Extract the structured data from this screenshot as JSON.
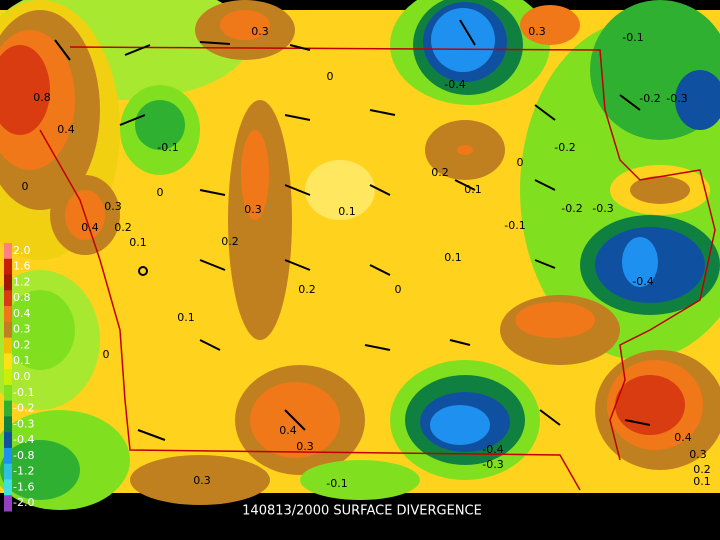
{
  "caption": "140813/2000 SURFACE DIVERGENCE",
  "legend": {
    "labels": [
      "2.0",
      "1.6",
      "1.2",
      "0.8",
      "0.4",
      "0.3",
      "0.2",
      "0.1",
      "0.0",
      "-0.1",
      "-0.2",
      "-0.3",
      "-0.4",
      "-0.8",
      "-1.2",
      "-1.6",
      "-2.0"
    ],
    "colors": [
      "#ff8080",
      "#c81e00",
      "#a01800",
      "#d83c10",
      "#f07818",
      "#c08020",
      "#f0c000",
      "#ffe010",
      "#c8f000",
      "#80e020",
      "#30b030",
      "#108040",
      "#1050a0",
      "#1e90f0",
      "#30c0e0",
      "#40e0e0",
      "#9040c0"
    ]
  },
  "contour_labels": [
    "0.3",
    "0.3",
    "-0.1",
    "0",
    "-0.4",
    "0.8",
    "0.4",
    "-0.1",
    "-0.2",
    "-0.2",
    "-0.3",
    "0.2",
    "0.1",
    "0",
    "0",
    "0",
    "0.3",
    "0.4",
    "0.2",
    "0.3",
    "0.1",
    "-0.2",
    "-0.3",
    "-0.1",
    "0.1",
    "0.2",
    "0.1",
    "-0.4",
    "0.2",
    "0",
    "0.1",
    "0",
    "0.4",
    "0.3",
    "-0.4",
    "-0.3",
    "0.4",
    "0.3",
    "0.2",
    "0.1",
    "0.3",
    "-0.1"
  ]
}
